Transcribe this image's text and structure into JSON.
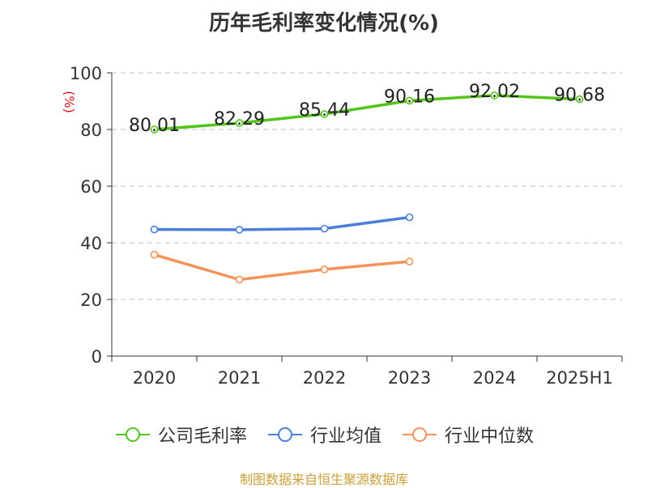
{
  "chart_data": {
    "type": "line",
    "title": "历年毛利率变化情况(%)",
    "ylabel": "(%)",
    "xlabel": "",
    "categories": [
      "2020",
      "2021",
      "2022",
      "2023",
      "2024",
      "2025H1"
    ],
    "ylim": [
      0,
      100
    ],
    "yticks": [
      "0",
      "20",
      "40",
      "60",
      "80",
      "100"
    ],
    "grid": "horizontal-dashed",
    "legend_position": "bottom",
    "series": [
      {
        "name": "公司毛利率",
        "color": "#52c41a",
        "values": [
          80.01,
          82.29,
          85.44,
          90.16,
          92.02,
          90.68
        ],
        "labels": [
          "80.01",
          "82.29",
          "85.44",
          "90.16",
          "92.02",
          "90.68"
        ]
      },
      {
        "name": "行业均值",
        "color": "#4a7fdc",
        "values": [
          44.7,
          44.6,
          45.0,
          49.0,
          null,
          null
        ]
      },
      {
        "name": "行业中位数",
        "color": "#f4935a",
        "values": [
          35.8,
          27.0,
          30.6,
          33.4,
          null,
          null
        ]
      }
    ]
  },
  "source": "制图数据来自恒生聚源数据库"
}
